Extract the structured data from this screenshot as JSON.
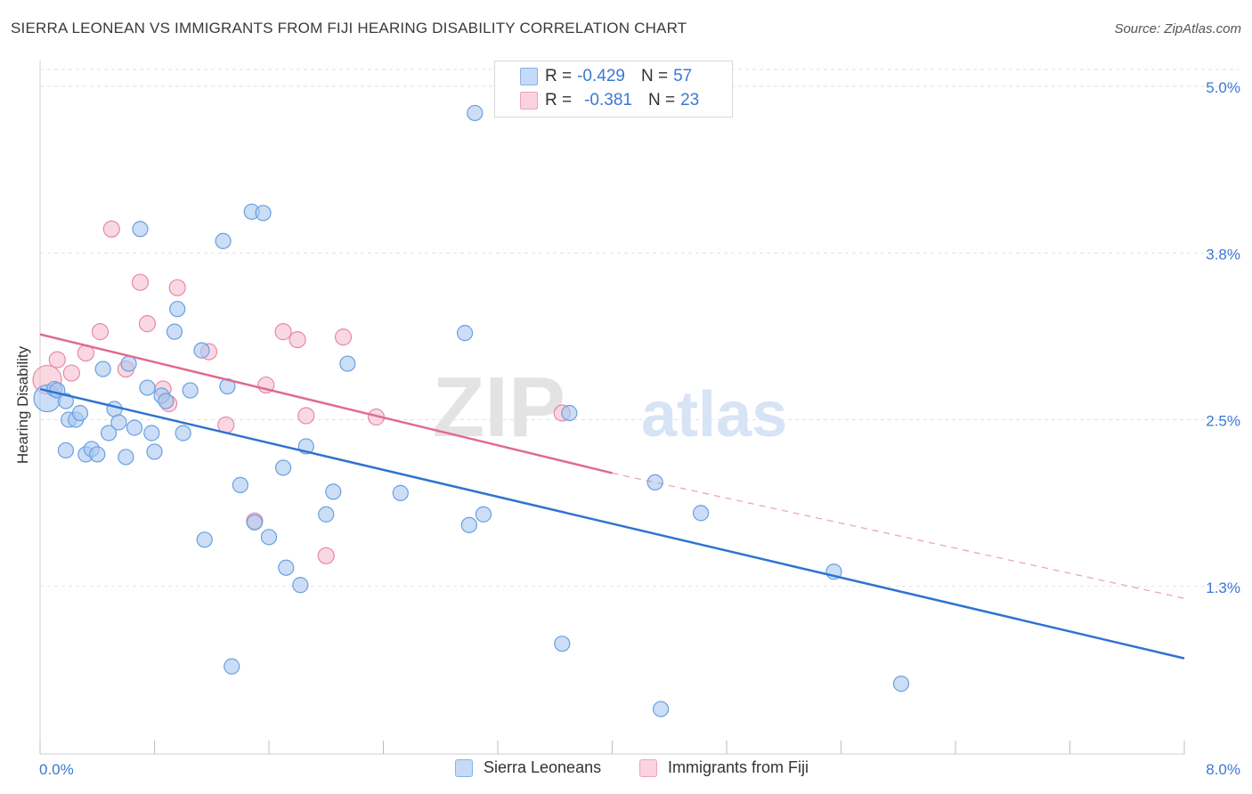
{
  "header": {
    "title": "SIERRA LEONEAN VS IMMIGRANTS FROM FIJI HEARING DISABILITY CORRELATION CHART",
    "source": "Source: ZipAtlas.com"
  },
  "watermark": {
    "zip": "ZIP",
    "atlas": "atlas"
  },
  "legend": {
    "rows": [
      {
        "r_label": "R =",
        "r_value": "-0.429",
        "n_label": "N =",
        "n_value": "57",
        "color": "#a8c8f0"
      },
      {
        "r_label": "R =",
        "r_value": "-0.381",
        "n_label": "N =",
        "n_value": "23",
        "color": "#f5b8c8"
      }
    ]
  },
  "bottom_legend": [
    {
      "label": "Sierra Leoneans",
      "color": "#a8c8f0"
    },
    {
      "label": "Immigrants from Fiji",
      "color": "#f5b8c8"
    }
  ],
  "chart_data": {
    "type": "scatter",
    "title": "SIERRA LEONEAN VS IMMIGRANTS FROM FIJI HEARING DISABILITY CORRELATION CHART",
    "xlabel": "",
    "ylabel": "Hearing Disability",
    "xlim": [
      0,
      8
    ],
    "ylim": [
      0,
      5.2
    ],
    "x_ticks": [
      0,
      0.8,
      1.6,
      2.4,
      3.2,
      4.0,
      4.8,
      5.6,
      6.4,
      7.2,
      8.0
    ],
    "x_tick_labels": [
      {
        "x": 0,
        "label": "0.0%"
      },
      {
        "x": 8,
        "label": "8.0%"
      }
    ],
    "y_ticks": [
      {
        "y": 1.25,
        "label": "1.3%"
      },
      {
        "y": 2.5,
        "label": "2.5%"
      },
      {
        "y": 3.75,
        "label": "3.8%"
      },
      {
        "y": 5.0,
        "label": "5.0%"
      }
    ],
    "grid": true,
    "legend_position": "top-center",
    "series": [
      {
        "name": "Sierra Leoneans",
        "color": "#a8c8f0",
        "stroke": "#6a9fe0",
        "trend": {
          "x0": 0,
          "y0": 2.73,
          "x1": 8,
          "y1": 0.71,
          "color": "#2f73d0"
        },
        "points": [
          [
            0.05,
            2.66
          ],
          [
            0.1,
            2.73
          ],
          [
            0.12,
            2.72
          ],
          [
            0.18,
            2.64
          ],
          [
            0.18,
            2.27
          ],
          [
            0.2,
            2.5
          ],
          [
            0.25,
            2.5
          ],
          [
            0.28,
            2.55
          ],
          [
            0.32,
            2.24
          ],
          [
            0.36,
            2.28
          ],
          [
            0.4,
            2.24
          ],
          [
            0.44,
            2.88
          ],
          [
            0.48,
            2.4
          ],
          [
            0.52,
            2.58
          ],
          [
            0.55,
            2.48
          ],
          [
            0.6,
            2.22
          ],
          [
            0.62,
            2.92
          ],
          [
            0.66,
            2.44
          ],
          [
            0.7,
            3.93
          ],
          [
            0.75,
            2.74
          ],
          [
            0.78,
            2.4
          ],
          [
            0.8,
            2.26
          ],
          [
            0.85,
            2.68
          ],
          [
            0.88,
            2.64
          ],
          [
            0.94,
            3.16
          ],
          [
            0.96,
            3.33
          ],
          [
            1.0,
            2.4
          ],
          [
            1.05,
            2.72
          ],
          [
            1.13,
            3.02
          ],
          [
            1.15,
            1.6
          ],
          [
            1.28,
            3.84
          ],
          [
            1.31,
            2.75
          ],
          [
            1.34,
            0.65
          ],
          [
            1.4,
            2.01
          ],
          [
            1.48,
            4.06
          ],
          [
            1.5,
            1.73
          ],
          [
            1.56,
            4.05
          ],
          [
            1.6,
            1.62
          ],
          [
            1.7,
            2.14
          ],
          [
            1.72,
            1.39
          ],
          [
            1.82,
            1.26
          ],
          [
            1.86,
            2.3
          ],
          [
            2.0,
            1.79
          ],
          [
            2.05,
            1.96
          ],
          [
            2.15,
            2.92
          ],
          [
            2.52,
            1.95
          ],
          [
            2.97,
            3.15
          ],
          [
            3.0,
            1.71
          ],
          [
            3.04,
            4.8
          ],
          [
            3.1,
            1.79
          ],
          [
            3.65,
            0.82
          ],
          [
            3.7,
            2.55
          ],
          [
            4.3,
            2.03
          ],
          [
            4.34,
            0.33
          ],
          [
            4.62,
            1.8
          ],
          [
            5.55,
            1.36
          ],
          [
            6.02,
            0.52
          ]
        ]
      },
      {
        "name": "Immigrants from Fiji",
        "color": "#f5b8c8",
        "stroke": "#e888a8",
        "trend": {
          "x0": 0,
          "y0": 3.14,
          "x1": 4.0,
          "y1": 2.1,
          "dash_x1": 8,
          "dash_y1": 1.16,
          "color": "#e06b90"
        },
        "points": [
          [
            0.05,
            2.8
          ],
          [
            0.12,
            2.95
          ],
          [
            0.22,
            2.85
          ],
          [
            0.32,
            3.0
          ],
          [
            0.42,
            3.16
          ],
          [
            0.5,
            3.93
          ],
          [
            0.6,
            2.88
          ],
          [
            0.7,
            3.53
          ],
          [
            0.75,
            3.22
          ],
          [
            0.86,
            2.73
          ],
          [
            0.9,
            2.62
          ],
          [
            0.96,
            3.49
          ],
          [
            1.18,
            3.01
          ],
          [
            1.3,
            2.46
          ],
          [
            1.5,
            1.74
          ],
          [
            1.58,
            2.76
          ],
          [
            1.7,
            3.16
          ],
          [
            1.8,
            3.1
          ],
          [
            1.86,
            2.53
          ],
          [
            2.0,
            1.48
          ],
          [
            2.12,
            3.12
          ],
          [
            2.35,
            2.52
          ],
          [
            3.65,
            2.55
          ]
        ]
      }
    ]
  }
}
